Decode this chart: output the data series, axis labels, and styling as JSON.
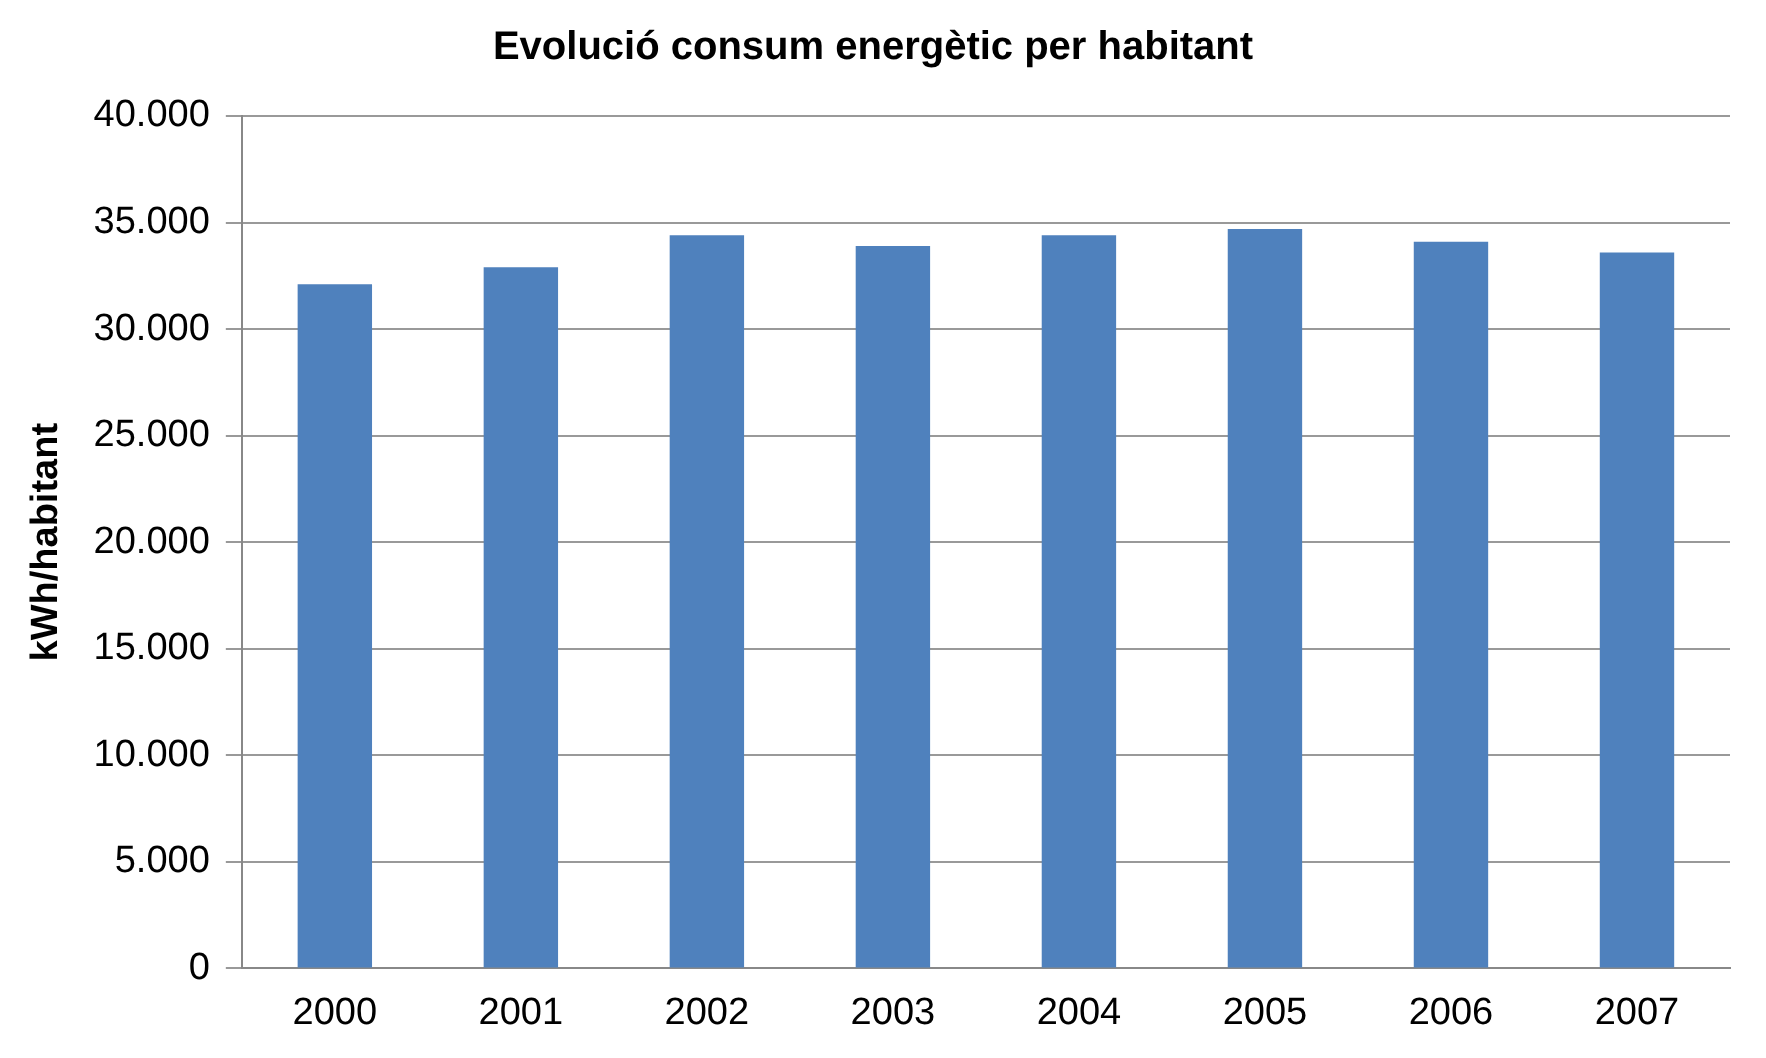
{
  "chart_data": {
    "type": "bar",
    "title": "Evolució consum energètic per habitant",
    "ylabel": "kWh/habitant",
    "categories": [
      "2000",
      "2001",
      "2002",
      "2003",
      "2004",
      "2005",
      "2006",
      "2007"
    ],
    "values": [
      32100,
      32900,
      34400,
      33900,
      34400,
      34700,
      34100,
      33600
    ],
    "color": "#4f81bd",
    "ylim": [
      0,
      40000
    ],
    "yticks": [
      {
        "value": 0,
        "label": "0"
      },
      {
        "value": 5000,
        "label": "5.000"
      },
      {
        "value": 10000,
        "label": "10.000"
      },
      {
        "value": 15000,
        "label": "15.000"
      },
      {
        "value": 20000,
        "label": "20.000"
      },
      {
        "value": 25000,
        "label": "25.000"
      },
      {
        "value": 30000,
        "label": "30.000"
      },
      {
        "value": 35000,
        "label": "35.000"
      },
      {
        "value": 40000,
        "label": "40.000"
      }
    ],
    "grid": "y",
    "legend": false
  }
}
